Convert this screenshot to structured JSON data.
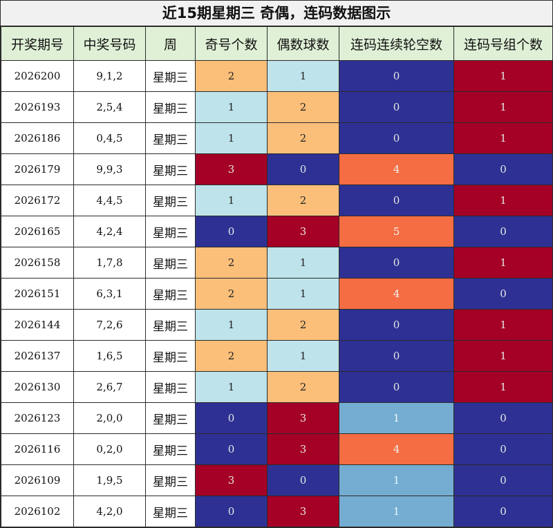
{
  "title": "近15期星期三 奇偶，连码数据图示",
  "columns": [
    "开奖期号",
    "中奖号码",
    "周",
    "奇号个数",
    "偶数球数",
    "连码连续轮空数",
    "连码号组个数"
  ],
  "colors": {
    "orange": "#fbbf7a",
    "light_blue": "#bee3ea",
    "navy": "#2e3193",
    "red": "#a50026",
    "coral": "#f46d43",
    "sky_blue": "#74add1",
    "header_bg": "#dff0d6"
  },
  "chart_data": {
    "type": "table",
    "title": "近15期星期三 奇偶，连码数据图示",
    "rows": [
      {
        "issue": "2026200",
        "numbers": "9,1,2",
        "week": "星期三",
        "odd": 2,
        "even": 1,
        "gap": 0,
        "groups": 1
      },
      {
        "issue": "2026193",
        "numbers": "2,5,4",
        "week": "星期三",
        "odd": 1,
        "even": 2,
        "gap": 0,
        "groups": 1
      },
      {
        "issue": "2026186",
        "numbers": "0,4,5",
        "week": "星期三",
        "odd": 1,
        "even": 2,
        "gap": 0,
        "groups": 1
      },
      {
        "issue": "2026179",
        "numbers": "9,9,3",
        "week": "星期三",
        "odd": 3,
        "even": 0,
        "gap": 4,
        "groups": 0
      },
      {
        "issue": "2026172",
        "numbers": "4,4,5",
        "week": "星期三",
        "odd": 1,
        "even": 2,
        "gap": 0,
        "groups": 1
      },
      {
        "issue": "2026165",
        "numbers": "4,2,4",
        "week": "星期三",
        "odd": 0,
        "even": 3,
        "gap": 5,
        "groups": 0
      },
      {
        "issue": "2026158",
        "numbers": "1,7,8",
        "week": "星期三",
        "odd": 2,
        "even": 1,
        "gap": 0,
        "groups": 1
      },
      {
        "issue": "2026151",
        "numbers": "6,3,1",
        "week": "星期三",
        "odd": 2,
        "even": 1,
        "gap": 4,
        "groups": 0
      },
      {
        "issue": "2026144",
        "numbers": "7,2,6",
        "week": "星期三",
        "odd": 1,
        "even": 2,
        "gap": 0,
        "groups": 1
      },
      {
        "issue": "2026137",
        "numbers": "1,6,5",
        "week": "星期三",
        "odd": 2,
        "even": 1,
        "gap": 0,
        "groups": 1
      },
      {
        "issue": "2026130",
        "numbers": "2,6,7",
        "week": "星期三",
        "odd": 1,
        "even": 2,
        "gap": 0,
        "groups": 1
      },
      {
        "issue": "2026123",
        "numbers": "2,0,0",
        "week": "星期三",
        "odd": 0,
        "even": 3,
        "gap": 1,
        "groups": 0
      },
      {
        "issue": "2026116",
        "numbers": "0,2,0",
        "week": "星期三",
        "odd": 0,
        "even": 3,
        "gap": 4,
        "groups": 0
      },
      {
        "issue": "2026109",
        "numbers": "1,9,5",
        "week": "星期三",
        "odd": 3,
        "even": 0,
        "gap": 1,
        "groups": 0
      },
      {
        "issue": "2026102",
        "numbers": "4,2,0",
        "week": "星期三",
        "odd": 0,
        "even": 3,
        "gap": 1,
        "groups": 0
      }
    ]
  }
}
